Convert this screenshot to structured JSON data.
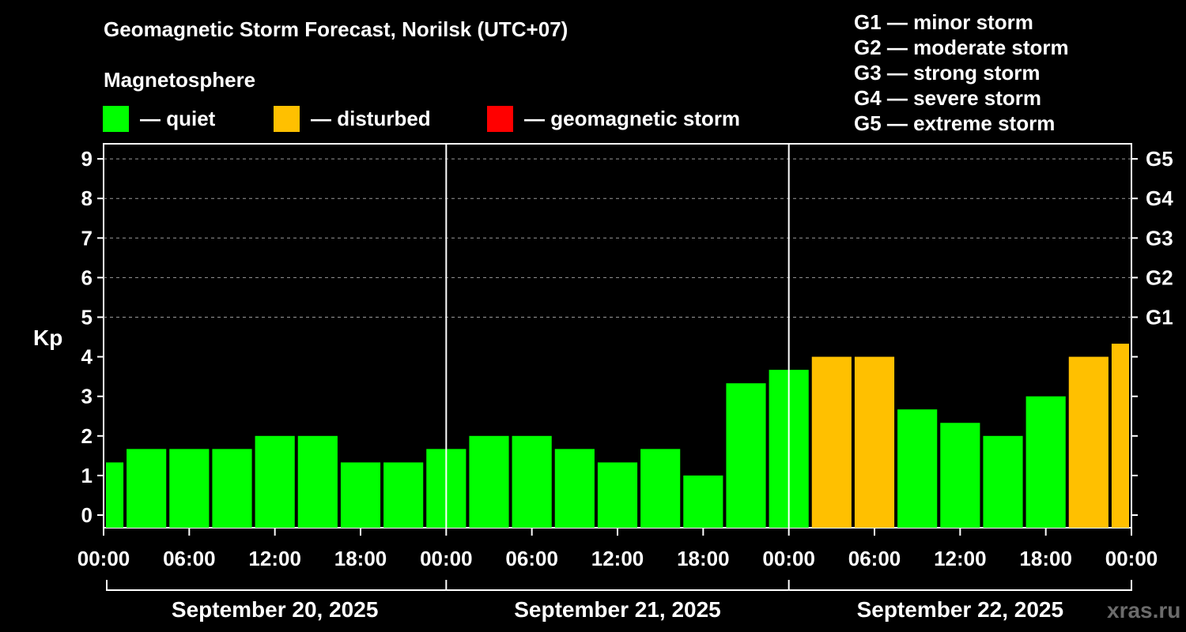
{
  "title": "Geomagnetic Storm Forecast, Norilsk (UTC+07)",
  "magnetosphere_label": "Magnetosphere",
  "legend": [
    {
      "label": "— quiet",
      "color": "#00ff00"
    },
    {
      "label": "— disturbed",
      "color": "#ffc000"
    },
    {
      "label": "— geomagnetic storm",
      "color": "#ff0000"
    }
  ],
  "g_scale": [
    "G1 — minor storm",
    "G2 — moderate storm",
    "G3 — strong storm",
    "G4 — severe storm",
    "G5 — extreme storm"
  ],
  "watermark": "xras.ru",
  "chart_data": {
    "type": "bar",
    "ylabel": "Kp",
    "ylim": [
      0,
      9
    ],
    "y_ticks": [
      "0",
      "1",
      "2",
      "3",
      "4",
      "5",
      "6",
      "7",
      "8",
      "9"
    ],
    "right_ticks": [
      {
        "kp": 5,
        "label": "G1"
      },
      {
        "kp": 6,
        "label": "G2"
      },
      {
        "kp": 7,
        "label": "G3"
      },
      {
        "kp": 8,
        "label": "G4"
      },
      {
        "kp": 9,
        "label": "G5"
      }
    ],
    "x_tick_labels": [
      "00:00",
      "06:00",
      "12:00",
      "18:00",
      "00:00",
      "06:00",
      "12:00",
      "18:00",
      "00:00",
      "06:00",
      "12:00",
      "18:00",
      "00:00"
    ],
    "days": [
      "September 20, 2025",
      "September 21, 2025",
      "September 22, 2025"
    ],
    "grid": "dashed horizontal at Kp 5–9",
    "bar_interval_hours": 3,
    "values": [
      1.33,
      1.67,
      1.67,
      1.67,
      2.0,
      2.0,
      1.33,
      1.33,
      1.67,
      2.0,
      2.0,
      1.67,
      1.33,
      1.67,
      1.0,
      3.33,
      3.67,
      4.0,
      4.0,
      2.67,
      2.33,
      2.0,
      3.0,
      4.0,
      4.33
    ],
    "status": [
      "quiet",
      "quiet",
      "quiet",
      "quiet",
      "quiet",
      "quiet",
      "quiet",
      "quiet",
      "quiet",
      "quiet",
      "quiet",
      "quiet",
      "quiet",
      "quiet",
      "quiet",
      "quiet",
      "quiet",
      "disturbed",
      "disturbed",
      "quiet",
      "quiet",
      "quiet",
      "quiet",
      "disturbed",
      "disturbed"
    ],
    "colors": {
      "quiet": "#00ff00",
      "disturbed": "#ffc000",
      "storm": "#ff0000"
    }
  }
}
